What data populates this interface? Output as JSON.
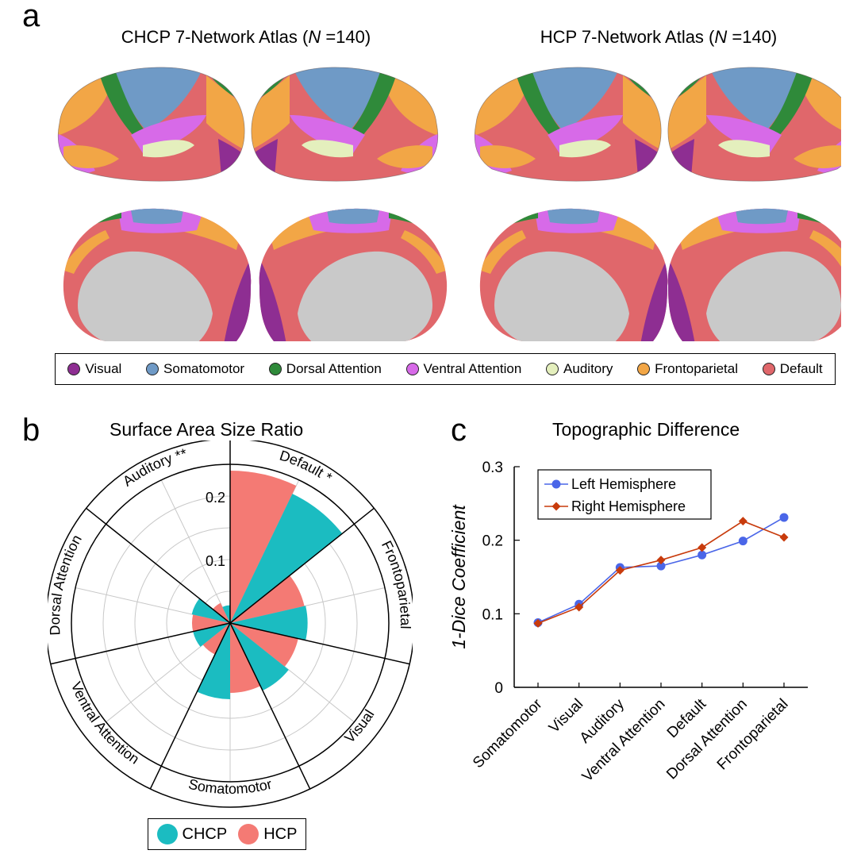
{
  "panels": {
    "a": {
      "letter": "a",
      "left_title_prefix": "CHCP 7-Network Atlas (",
      "left_title_n": "N",
      "left_title_suffix": " =140)",
      "right_title_prefix": "HCP 7-Network Atlas (",
      "right_title_n": "N",
      "right_title_suffix": " =140)"
    },
    "b": {
      "letter": "b",
      "title": "Surface Area Size Ratio"
    },
    "c": {
      "letter": "c",
      "title": "Topographic Difference"
    }
  },
  "network_legend": [
    {
      "label": "Visual",
      "color": "#8e2e92"
    },
    {
      "label": "Somatomotor",
      "color": "#6f9ac6"
    },
    {
      "label": "Dorsal Attention",
      "color": "#2f8a3a"
    },
    {
      "label": "Ventral Attention",
      "color": "#d76ae8"
    },
    {
      "label": "Auditory",
      "color": "#e4efbd"
    },
    {
      "label": "Frontoparietal",
      "color": "#f2a646"
    },
    {
      "label": "Default",
      "color": "#e0676b"
    }
  ],
  "chart_data": [
    {
      "type": "polar-bar",
      "title": "Surface Area Size Ratio",
      "radial_ticks": [
        0.1,
        0.2
      ],
      "rlim": [
        0,
        0.25
      ],
      "sectors": [
        {
          "label": "Default *",
          "CHCP": 0.226,
          "HCP": 0.24
        },
        {
          "label": "Frontoparietal",
          "CHCP": 0.122,
          "HCP": 0.12
        },
        {
          "label": "Visual",
          "CHCP": 0.118,
          "HCP": 0.11
        },
        {
          "label": "Somatomotor",
          "CHCP": 0.12,
          "HCP": 0.11
        },
        {
          "label": "Ventral Attention",
          "CHCP": 0.06,
          "HCP": 0.055
        },
        {
          "label": "Dorsal Attention",
          "CHCP": 0.062,
          "HCP": 0.06
        },
        {
          "label": "Auditory **",
          "CHCP": 0.028,
          "HCP": 0.035
        }
      ],
      "series": [
        {
          "name": "CHCP",
          "color": "#1bbcc1"
        },
        {
          "name": "HCP",
          "color": "#f47a74"
        }
      ],
      "legend": [
        "CHCP",
        "HCP"
      ],
      "legend_position": "bottom"
    },
    {
      "type": "line",
      "title": "Topographic Difference",
      "ylabel": "1-Dice Coefficient",
      "categories": [
        "Somatomotor",
        "Visual",
        "Auditory",
        "Ventral Attention",
        "Default",
        "Dorsal Attention",
        "Frontoparietal"
      ],
      "ylim": [
        0,
        0.3
      ],
      "yticks": [
        "0",
        "0.1",
        "0.2",
        "0.3"
      ],
      "series": [
        {
          "name": "Left Hemisphere",
          "color": "#4a66e8",
          "marker": "circle",
          "values": [
            0.088,
            0.113,
            0.163,
            0.165,
            0.18,
            0.199,
            0.231
          ]
        },
        {
          "name": "Right Hemisphere",
          "color": "#c83b0c",
          "marker": "diamond",
          "values": [
            0.087,
            0.109,
            0.159,
            0.173,
            0.19,
            0.226,
            0.204
          ]
        }
      ],
      "legend_position": "top-left"
    }
  ]
}
